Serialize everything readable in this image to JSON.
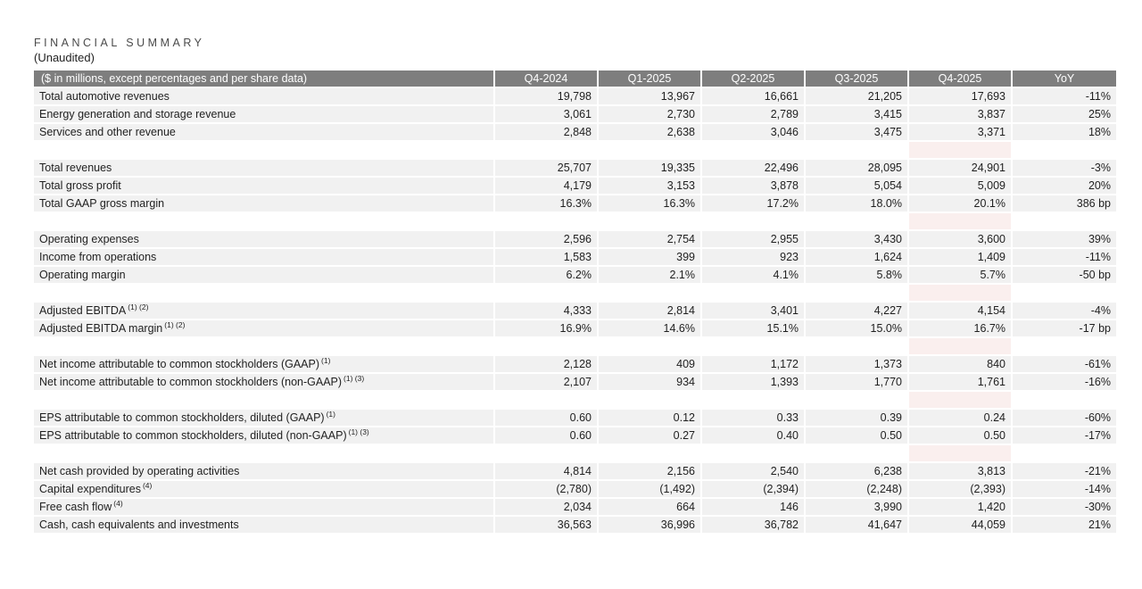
{
  "page": {
    "title": "FINANCIAL SUMMARY",
    "subtitle": "(Unaudited)"
  },
  "colors": {
    "header_bg": "#7e7e7e",
    "header_text": "#ffffff",
    "row_bg": "#f1f1f1",
    "highlight_bg": "#f3dcdb",
    "highlight_blank_bg": "#faefee",
    "text": "#1f1f1f",
    "title_text": "#4a4a4a"
  },
  "table": {
    "highlight_column": "Q4-2025",
    "columns": [
      {
        "label": "($ in millions, except percentages and per share data)"
      },
      {
        "label": "Q4-2024"
      },
      {
        "label": "Q1-2025"
      },
      {
        "label": "Q2-2025"
      },
      {
        "label": "Q3-2025"
      },
      {
        "label": "Q4-2025"
      },
      {
        "label": "YoY"
      }
    ],
    "rows": [
      {
        "label": "Total automotive revenues",
        "sup": "",
        "values": [
          "19,798",
          "13,967",
          "16,661",
          "21,205",
          "17,693",
          "-11%"
        ]
      },
      {
        "label": "Energy generation and storage revenue",
        "sup": "",
        "values": [
          "3,061",
          "2,730",
          "2,789",
          "3,415",
          "3,837",
          "25%"
        ]
      },
      {
        "label": "Services and other revenue",
        "sup": "",
        "values": [
          "2,848",
          "2,638",
          "3,046",
          "3,475",
          "3,371",
          "18%"
        ]
      },
      {
        "blank": true
      },
      {
        "label": "Total revenues",
        "sup": "",
        "values": [
          "25,707",
          "19,335",
          "22,496",
          "28,095",
          "24,901",
          "-3%"
        ]
      },
      {
        "label": "Total gross profit",
        "sup": "",
        "values": [
          "4,179",
          "3,153",
          "3,878",
          "5,054",
          "5,009",
          "20%"
        ]
      },
      {
        "label": "Total GAAP gross margin",
        "sup": "",
        "values": [
          "16.3%",
          "16.3%",
          "17.2%",
          "18.0%",
          "20.1%",
          "386 bp"
        ]
      },
      {
        "blank": true
      },
      {
        "label": "Operating expenses",
        "sup": "",
        "values": [
          "2,596",
          "2,754",
          "2,955",
          "3,430",
          "3,600",
          "39%"
        ]
      },
      {
        "label": "Income from operations",
        "sup": "",
        "values": [
          "1,583",
          "399",
          "923",
          "1,624",
          "1,409",
          "-11%"
        ]
      },
      {
        "label": "Operating margin",
        "sup": "",
        "values": [
          "6.2%",
          "2.1%",
          "4.1%",
          "5.8%",
          "5.7%",
          "-50 bp"
        ]
      },
      {
        "blank": true
      },
      {
        "label": "Adjusted EBITDA",
        "sup": "(1) (2)",
        "values": [
          "4,333",
          "2,814",
          "3,401",
          "4,227",
          "4,154",
          "-4%"
        ]
      },
      {
        "label": "Adjusted EBITDA margin",
        "sup": "(1) (2)",
        "values": [
          "16.9%",
          "14.6%",
          "15.1%",
          "15.0%",
          "16.7%",
          "-17 bp"
        ]
      },
      {
        "blank": true
      },
      {
        "label": "Net income attributable to common stockholders (GAAP)",
        "sup": "(1)",
        "values": [
          "2,128",
          "409",
          "1,172",
          "1,373",
          "840",
          "-61%"
        ]
      },
      {
        "label": "Net income attributable to common stockholders (non-GAAP)",
        "sup": "(1) (3)",
        "values": [
          "2,107",
          "934",
          "1,393",
          "1,770",
          "1,761",
          "-16%"
        ]
      },
      {
        "blank": true
      },
      {
        "label": "EPS attributable to common stockholders, diluted (GAAP)",
        "sup": "(1)",
        "values": [
          "0.60",
          "0.12",
          "0.33",
          "0.39",
          "0.24",
          "-60%"
        ]
      },
      {
        "label": "EPS attributable to common stockholders, diluted (non-GAAP)",
        "sup": "(1) (3)",
        "values": [
          "0.60",
          "0.27",
          "0.40",
          "0.50",
          "0.50",
          "-17%"
        ]
      },
      {
        "blank": true
      },
      {
        "label": "Net cash provided by operating activities",
        "sup": "",
        "values": [
          "4,814",
          "2,156",
          "2,540",
          "6,238",
          "3,813",
          "-21%"
        ]
      },
      {
        "label": "Capital expenditures",
        "sup": "(4)",
        "values": [
          "(2,780)",
          "(1,492)",
          "(2,394)",
          "(2,248)",
          "(2,393)",
          "-14%"
        ]
      },
      {
        "label": "Free cash flow",
        "sup": "(4)",
        "values": [
          "2,034",
          "664",
          "146",
          "3,990",
          "1,420",
          "-30%"
        ]
      },
      {
        "label": "Cash, cash equivalents and investments",
        "sup": "",
        "values": [
          "36,563",
          "36,996",
          "36,782",
          "41,647",
          "44,059",
          "21%"
        ]
      }
    ]
  }
}
